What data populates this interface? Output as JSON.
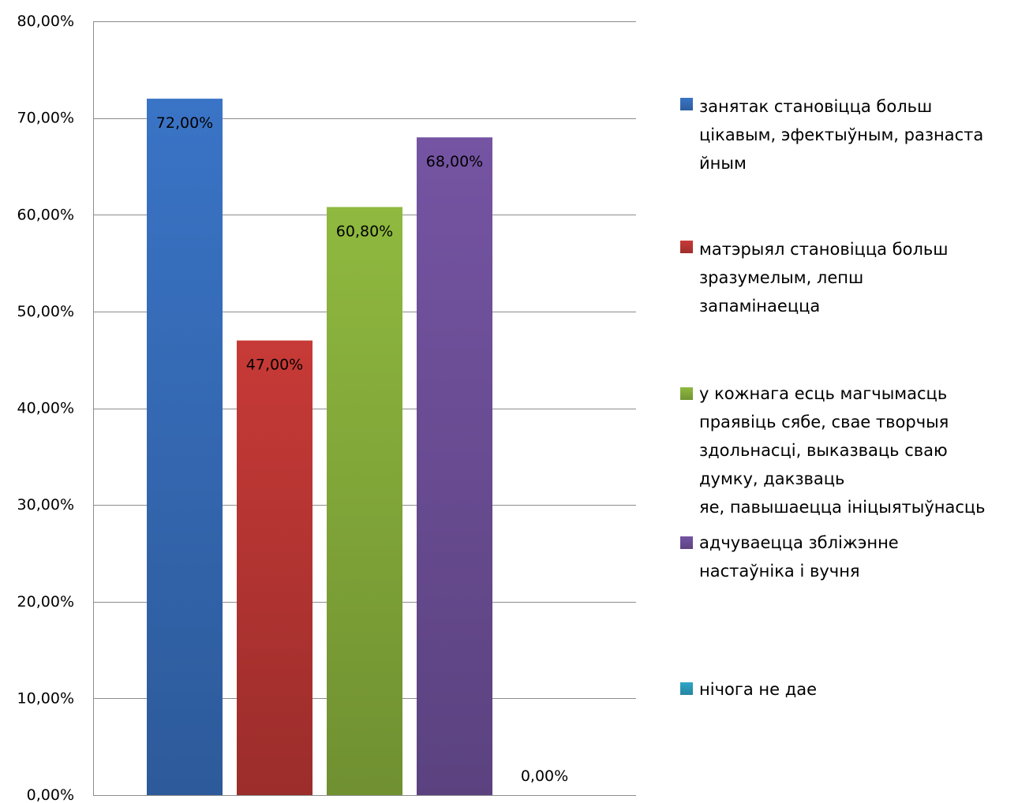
{
  "chart_data": {
    "type": "bar",
    "categories": [
      "занятак становіцца больш цікавым, эфектыўным, разнастайным",
      "матэрыял становіцца больш зразумелым, лепш запамінаецца",
      "у кожнага есць магчымасць праявіць сябе, свае творчыя здольнасці, выказваць сваю думку, дакзваць яе, павышаецца ініцыятыўнасць",
      "адчуваецца зблiжэнне настаўніка і вучня",
      "нічога не дае"
    ],
    "values": [
      72.0,
      47.0,
      60.8,
      68.0,
      0.0
    ],
    "data_labels": [
      "72,00%",
      "47,00%",
      "60,80%",
      "68,00%",
      "0,00%"
    ],
    "colors": [
      "#3a74c6",
      "#c73a37",
      "#8fb93f",
      "#7554a3",
      "#2fa6c8"
    ],
    "ylim": [
      0,
      80
    ],
    "y_ticks": [
      0,
      10,
      20,
      30,
      40,
      50,
      60,
      70,
      80
    ],
    "y_tick_labels": [
      "0,00%",
      "10,00%",
      "20,00%",
      "30,00%",
      "40,00%",
      "50,00%",
      "60,00%",
      "70,00%",
      "80,00%"
    ],
    "grid": true,
    "legend_position": "right",
    "legend": [
      {
        "text": "занятак становіцца больш\nцікавым, эфектыўным, разнаста\nйным",
        "color": "#3a74c6"
      },
      {
        "text": "матэрыял становіцца больш\nзразумелым, лепш\nзапамінаецца",
        "color": "#c73a37"
      },
      {
        "text": "у кожнага есць магчымасць\nпраявіць сябе, свае творчыя\nздольнасці, выказваць сваю\nдумку, дакзваць\nяе, павышаецца ініцыятыўнасць",
        "color": "#8fb93f"
      },
      {
        "text": "адчуваецца зблiжэнне\nнастаўніка і вучня",
        "color": "#7554a3"
      },
      {
        "text": "нічога не дае",
        "color": "#2fa6c8"
      }
    ]
  }
}
